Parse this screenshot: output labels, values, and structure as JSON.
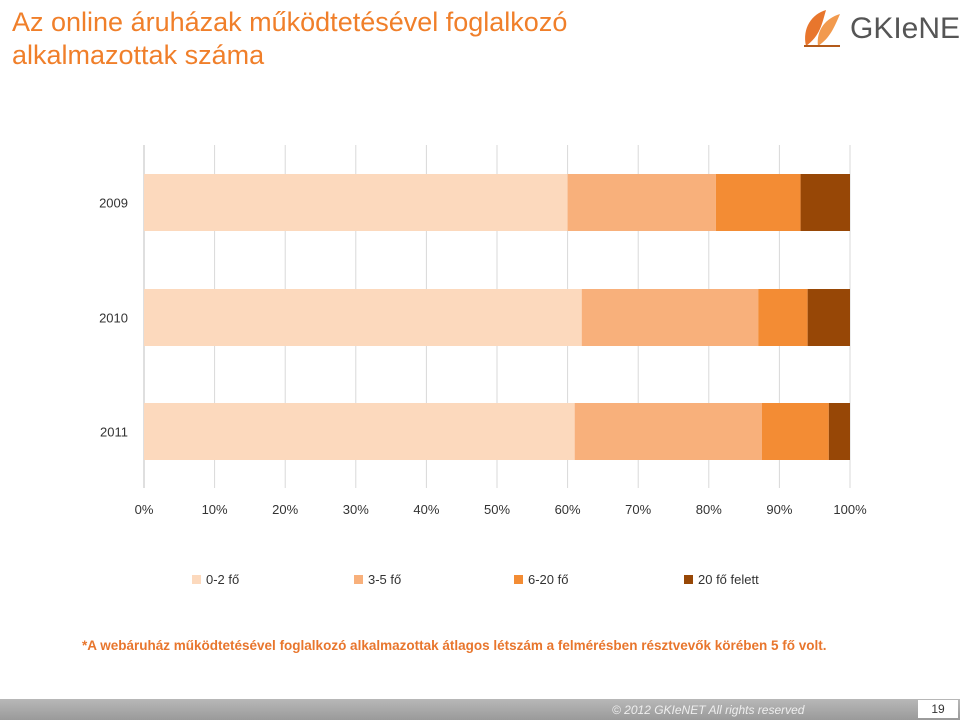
{
  "slide": {
    "title": "Az online áruházak működtetésével foglalkozó alkalmazottak száma",
    "logo_text": "GKIeNET",
    "footnote": "*A webáruház működtetésével foglalkozó alkalmazottak átlagos létszám a felmérésben résztvevők körében 5 fő volt.",
    "copyright": "© 2012 GKIeNET All rights reserved",
    "page_number": "19"
  },
  "colors": {
    "title": "#f07f2a",
    "footnote": "#e8762d",
    "series": [
      "#fcd9bd",
      "#f8b07b",
      "#f38c34",
      "#974706"
    ]
  },
  "chart_data": {
    "type": "bar",
    "orientation": "horizontal",
    "stacked": "percent",
    "categories": [
      "2009",
      "2010",
      "2011"
    ],
    "series": [
      {
        "name": "0-2 fő",
        "values": [
          60,
          62,
          61
        ]
      },
      {
        "name": "3-5 fő",
        "values": [
          21,
          25,
          26.5
        ]
      },
      {
        "name": "6-20 fő",
        "values": [
          12,
          7,
          9.5
        ]
      },
      {
        "name": "20 fő felett",
        "values": [
          7,
          6,
          3
        ]
      }
    ],
    "xlim": [
      0,
      100
    ],
    "x_ticks": [
      "0%",
      "10%",
      "20%",
      "30%",
      "40%",
      "50%",
      "60%",
      "70%",
      "80%",
      "90%",
      "100%"
    ],
    "grid": true,
    "legend": "bottom"
  }
}
